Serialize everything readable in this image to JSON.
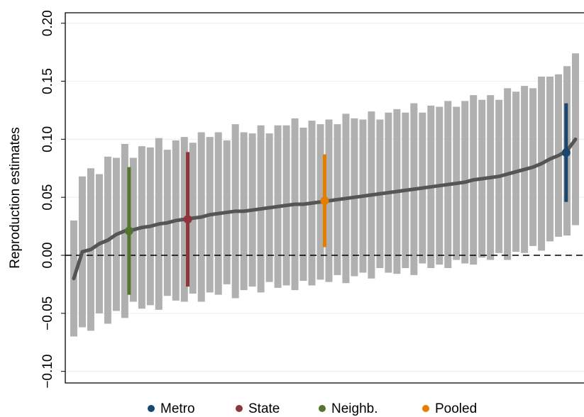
{
  "chart_data": {
    "type": "errorbar",
    "y_label": "Reproduction estimates",
    "ylim": [
      -0.11,
      0.209
    ],
    "yticks": [
      {
        "value": -0.1,
        "label": "−0.10"
      },
      {
        "value": -0.05,
        "label": "−0.05"
      },
      {
        "value": 0,
        "label": "0.00"
      },
      {
        "value": 0.05,
        "label": "0.05"
      },
      {
        "value": 0.1,
        "label": "0.10"
      },
      {
        "value": 0.15,
        "label": "0.15"
      },
      {
        "value": 0.2,
        "label": "0.20"
      }
    ],
    "xlim": [
      0,
      61
    ],
    "grid": true,
    "reference_line": 0,
    "estimates": {
      "color": "#a8a8a8",
      "point_color": "#555555",
      "x": [
        1,
        2,
        3,
        4,
        5,
        6,
        7,
        8,
        9,
        10,
        11,
        12,
        13,
        14,
        15,
        16,
        17,
        18,
        19,
        20,
        21,
        22,
        23,
        24,
        25,
        26,
        27,
        28,
        29,
        30,
        31,
        32,
        33,
        34,
        35,
        36,
        37,
        38,
        39,
        40,
        41,
        42,
        43,
        44,
        45,
        46,
        47,
        48,
        49,
        50,
        51,
        52,
        53,
        54,
        55,
        56,
        57,
        58,
        59,
        60
      ],
      "values": [
        -0.02,
        0.003,
        0.005,
        0.01,
        0.013,
        0.018,
        0.021,
        0.022,
        0.024,
        0.025,
        0.027,
        0.028,
        0.03,
        0.031,
        0.032,
        0.033,
        0.035,
        0.036,
        0.037,
        0.038,
        0.038,
        0.039,
        0.04,
        0.041,
        0.042,
        0.043,
        0.044,
        0.044,
        0.045,
        0.046,
        0.047,
        0.048,
        0.049,
        0.05,
        0.051,
        0.052,
        0.053,
        0.054,
        0.055,
        0.056,
        0.057,
        0.058,
        0.059,
        0.06,
        0.061,
        0.062,
        0.063,
        0.065,
        0.066,
        0.067,
        0.068,
        0.07,
        0.072,
        0.074,
        0.076,
        0.079,
        0.083,
        0.086,
        0.09,
        0.1
      ],
      "errors": [
        0.05,
        0.065,
        0.07,
        0.06,
        0.072,
        0.066,
        0.075,
        0.062,
        0.07,
        0.068,
        0.074,
        0.063,
        0.069,
        0.071,
        0.065,
        0.073,
        0.067,
        0.07,
        0.062,
        0.075,
        0.068,
        0.066,
        0.072,
        0.064,
        0.07,
        0.069,
        0.074,
        0.066,
        0.071,
        0.067,
        0.07,
        0.065,
        0.073,
        0.068,
        0.066,
        0.072,
        0.064,
        0.069,
        0.071,
        0.067,
        0.074,
        0.065,
        0.07,
        0.068,
        0.072,
        0.066,
        0.07,
        0.073,
        0.068,
        0.071,
        0.066,
        0.074,
        0.069,
        0.072,
        0.068,
        0.075,
        0.071,
        0.07,
        0.073,
        0.074
      ]
    },
    "series": [
      {
        "name": "Metro",
        "color": "#1a476f",
        "x": [
          58.9
        ],
        "values": [
          0.0885
        ],
        "errors": [
          0.0425
        ]
      },
      {
        "name": "State",
        "color": "#90353b",
        "x": [
          14.4
        ],
        "values": [
          0.031
        ],
        "errors": [
          0.058
        ]
      },
      {
        "name": "Neighb.",
        "color": "#55752f",
        "x": [
          7.5
        ],
        "values": [
          0.021
        ],
        "errors": [
          0.055
        ]
      },
      {
        "name": "Pooled",
        "color": "#e37e00",
        "x": [
          30.5
        ],
        "values": [
          0.047
        ],
        "errors": [
          0.04
        ]
      }
    ]
  }
}
